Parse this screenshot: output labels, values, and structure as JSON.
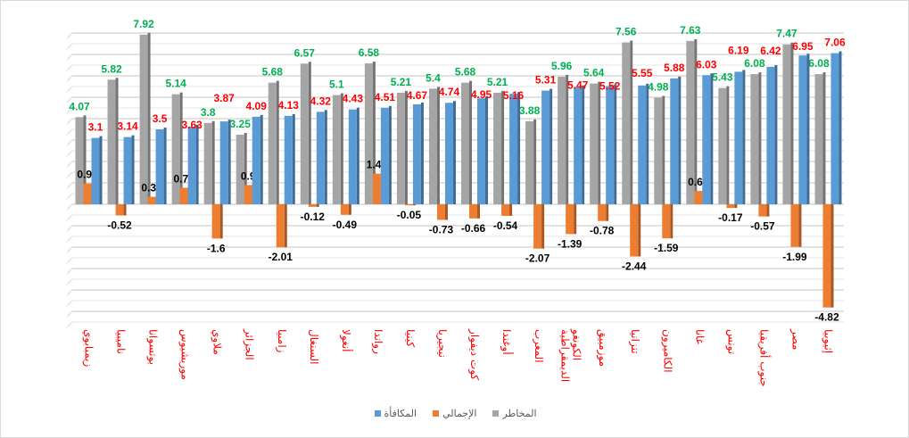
{
  "chart_data": {
    "type": "bar",
    "categories": [
      "زيمبابوي",
      "ناميبيا",
      "بوتسوانا",
      "موريشيوس",
      "ملاوي",
      "الجزائر",
      "زامبيا",
      "السنغال",
      "أنغولا",
      "رواندا",
      "كينيا",
      "نيجيريا",
      "كوت ديفوار",
      "أوغندا",
      "المغرب",
      "الكونغو الديمقراطية",
      "موزمبيق",
      "تنزانيا",
      "الكاميرون",
      "غانا",
      "تونس",
      "جنوب أفريقيا",
      "مصر",
      "إثيوبيا"
    ],
    "series": [
      {
        "name": "المخاطر",
        "color": "#a5a5a5",
        "label_color": "#00b050",
        "values": [
          4.07,
          5.82,
          7.92,
          5.14,
          3.8,
          3.25,
          5.68,
          6.57,
          5.1,
          6.58,
          5.21,
          5.4,
          5.68,
          5.21,
          3.88,
          5.96,
          5.64,
          7.56,
          4.98,
          7.63,
          5.43,
          6.08,
          7.47,
          6.08
        ]
      },
      {
        "name": "الإجمالي",
        "color": "#ed7d31",
        "label_color": "#000000",
        "values": [
          0.97,
          -0.52,
          0.35,
          0.77,
          -1.6,
          0.9,
          -2.01,
          -0.12,
          -0.49,
          1.43,
          -0.05,
          -0.73,
          -0.66,
          -0.54,
          -2.07,
          -1.39,
          -0.78,
          -2.44,
          -1.59,
          0.62,
          -0.17,
          -0.57,
          -1.99,
          -4.82
        ]
      },
      {
        "name": "المكافأة",
        "color": "#5b9bd5",
        "label_color": "#ff0000",
        "values": [
          3.1,
          3.14,
          3.5,
          3.63,
          3.87,
          4.09,
          4.13,
          4.32,
          4.43,
          4.51,
          4.67,
          4.74,
          4.95,
          5.16,
          5.31,
          5.47,
          5.52,
          5.55,
          5.88,
          6.03,
          6.19,
          6.42,
          6.95,
          7.06
        ]
      }
    ],
    "legend_order": [
      "المكافأة",
      "الإجمالي",
      "المخاطر"
    ],
    "legend_position": "bottom",
    "ylim": [
      -5.5,
      8
    ],
    "grid": true,
    "title": "",
    "xlabel": "",
    "ylabel": ""
  }
}
